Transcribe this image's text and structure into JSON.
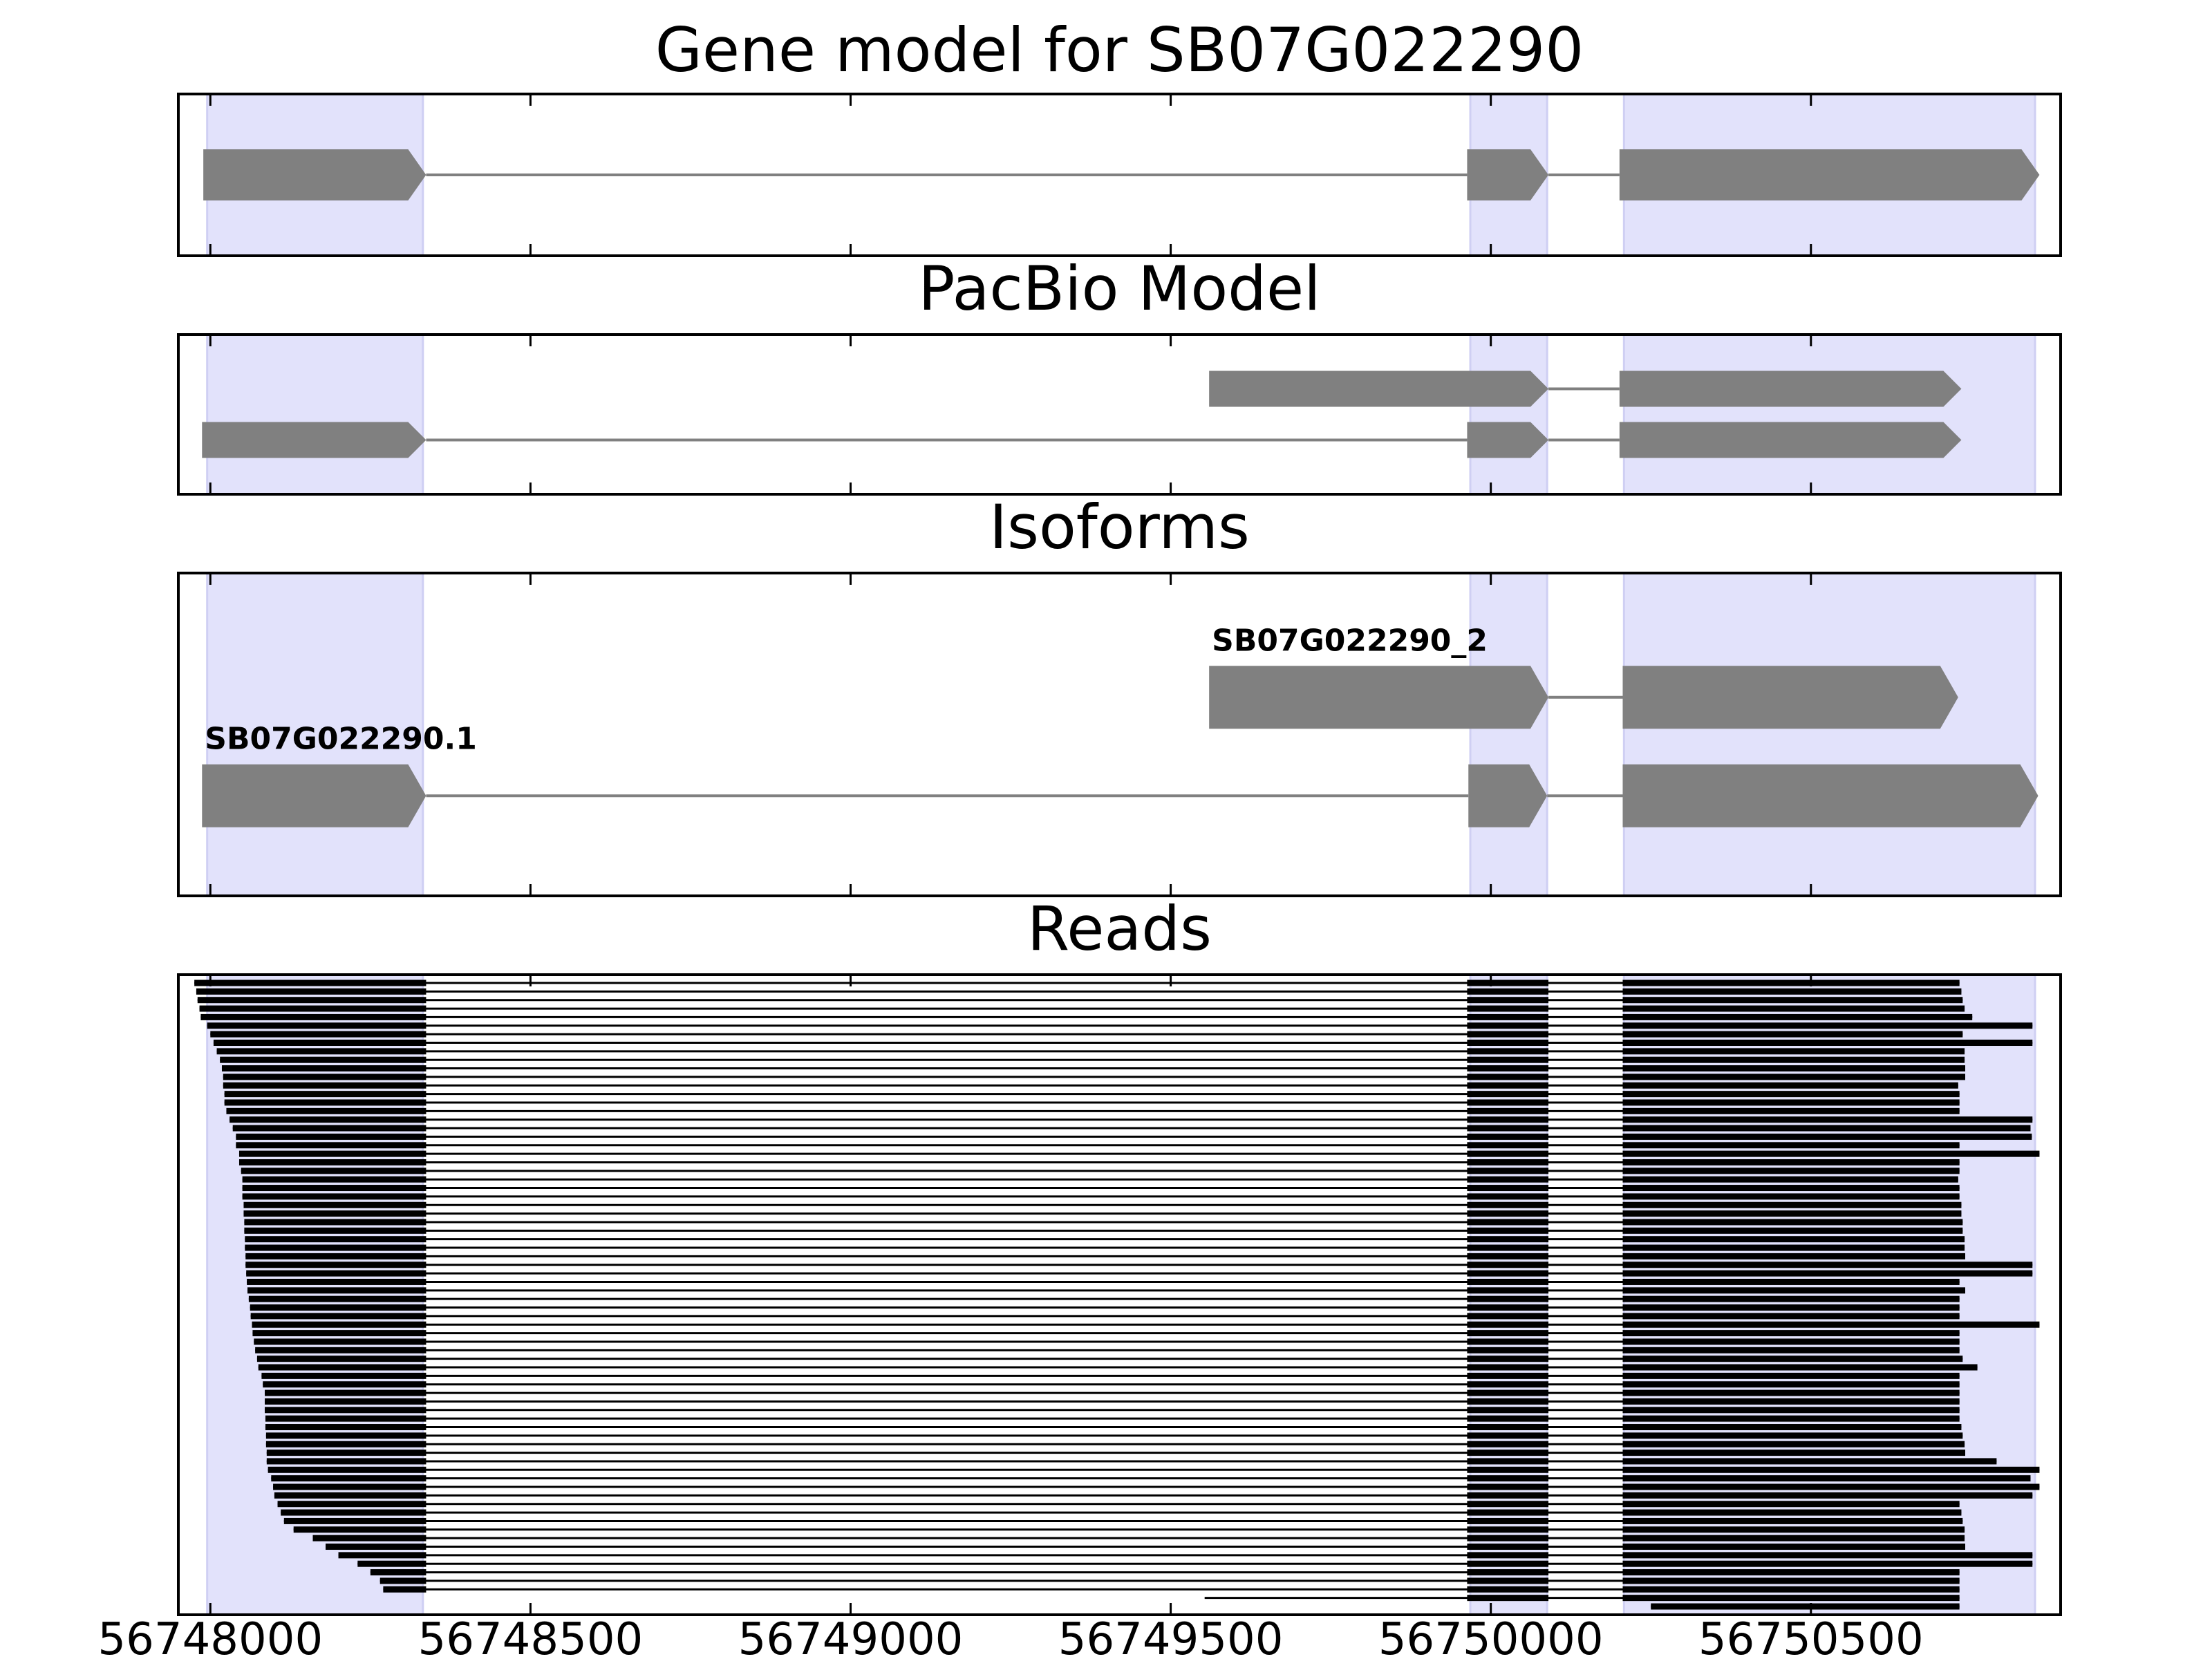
{
  "chart_data": [
    {
      "type": "gene",
      "title": "Gene model for SB07G022290",
      "xlim": [
        56747950,
        56750890
      ],
      "xticks": [
        56748000,
        56748500,
        56749000,
        56749500,
        56750000,
        56750500
      ],
      "shaded": [
        [
          56747995,
          56748332
        ],
        [
          56749968,
          56750088
        ],
        [
          56750208,
          56750850
        ]
      ],
      "transcripts": [
        {
          "exons": [
            [
              56747989,
              56748337
            ],
            [
              56749963,
              56750090
            ],
            [
              56750201,
              56750857
            ]
          ]
        }
      ]
    },
    {
      "type": "gene",
      "title": "PacBio Model",
      "xlim": [
        56747950,
        56750890
      ],
      "xticks": [
        56748000,
        56748500,
        56749000,
        56749500,
        56750000,
        56750500
      ],
      "shaded": [
        [
          56747995,
          56748332
        ],
        [
          56749968,
          56750088
        ],
        [
          56750208,
          56750850
        ]
      ],
      "transcripts": [
        {
          "exons": [
            [
              56749560,
              56750090
            ],
            [
              56750201,
              56750735
            ]
          ]
        },
        {
          "exons": [
            [
              56747987,
              56748337
            ],
            [
              56749963,
              56750090
            ],
            [
              56750201,
              56750735
            ]
          ]
        }
      ]
    },
    {
      "type": "gene",
      "title": "Isoforms",
      "xlim": [
        56747950,
        56750890
      ],
      "xticks": [
        56748000,
        56748500,
        56749000,
        56749500,
        56750000,
        56750500
      ],
      "shaded": [
        [
          56747995,
          56748332
        ],
        [
          56749968,
          56750088
        ],
        [
          56750208,
          56750850
        ]
      ],
      "transcripts": [
        {
          "name": "SB07G022290_2",
          "exons": [
            [
              56749560,
              56750090
            ],
            [
              56750206,
              56750730
            ]
          ]
        },
        {
          "name": "SB07G022290.1",
          "exons": [
            [
              56747987,
              56748337
            ],
            [
              56749965,
              56750088
            ],
            [
              56750206,
              56750855
            ]
          ]
        }
      ]
    },
    {
      "type": "reads",
      "title": "Reads",
      "xlim": [
        56747950,
        56750890
      ],
      "xticks": [
        56748000,
        56748500,
        56749000,
        56749500,
        56750000,
        56750500
      ],
      "shaded": [
        [
          56747995,
          56748332
        ],
        [
          56749968,
          56750088
        ],
        [
          56750208,
          56750850
        ]
      ],
      "introns": [
        [
          56748337,
          56749963
        ],
        [
          56750090,
          56750206
        ]
      ],
      "starts": [
        56747975,
        56747978,
        56747980,
        56747983,
        56747985,
        56747995,
        56748000,
        56748005,
        56748010,
        56748015,
        56748018,
        56748020,
        56748020,
        56748022,
        56748022,
        56748025,
        56748030,
        56748035,
        56748040,
        56748040,
        56748045,
        56748045,
        56748048,
        56748050,
        56748050,
        56748050,
        56748052,
        56748052,
        56748053,
        56748053,
        56748054,
        56748054,
        56748055,
        56748055,
        56748056,
        56748057,
        56748058,
        56748060,
        56748062,
        56748063,
        56748065,
        56748066,
        56748068,
        56748070,
        56748073,
        56748075,
        56748080,
        56748082,
        56748085,
        56748085,
        56748085,
        56748086,
        56748086,
        56748087,
        56748087,
        56748088,
        56748088,
        56748090,
        56748095,
        56748098,
        56748100,
        56748105,
        56748110,
        56748115,
        56748130,
        56748160,
        56748180,
        56748200,
        56748230,
        56748250,
        56748265,
        56748270,
        56749553,
        56750250
      ],
      "ends": [
        56750732,
        56750735,
        56750737,
        56750740,
        56750752,
        56750846,
        56750737,
        56750846,
        56750740,
        56750740,
        56750741,
        56750741,
        56750730,
        56750732,
        56750732,
        56750732,
        56750846,
        56750843,
        56750845,
        56750732,
        56750857,
        56750732,
        56750732,
        56750730,
        56750732,
        56750732,
        56750735,
        56750735,
        56750737,
        56750737,
        56750740,
        56750740,
        56750741,
        56750846,
        56750846,
        56750732,
        56750741,
        56750732,
        56750732,
        56750732,
        56750857,
        56750732,
        56750732,
        56750732,
        56750737,
        56750760,
        56750732,
        56750732,
        56750732,
        56750732,
        56750732,
        56750732,
        56750735,
        56750737,
        56750740,
        56750741,
        56750790,
        56750857,
        56750843,
        56750857,
        56750846,
        56750732,
        56750735,
        56750737,
        56750740,
        56750740,
        56750741,
        56750846,
        56750846,
        56750732,
        56750732,
        56750732,
        56750732,
        56750732
      ]
    }
  ]
}
